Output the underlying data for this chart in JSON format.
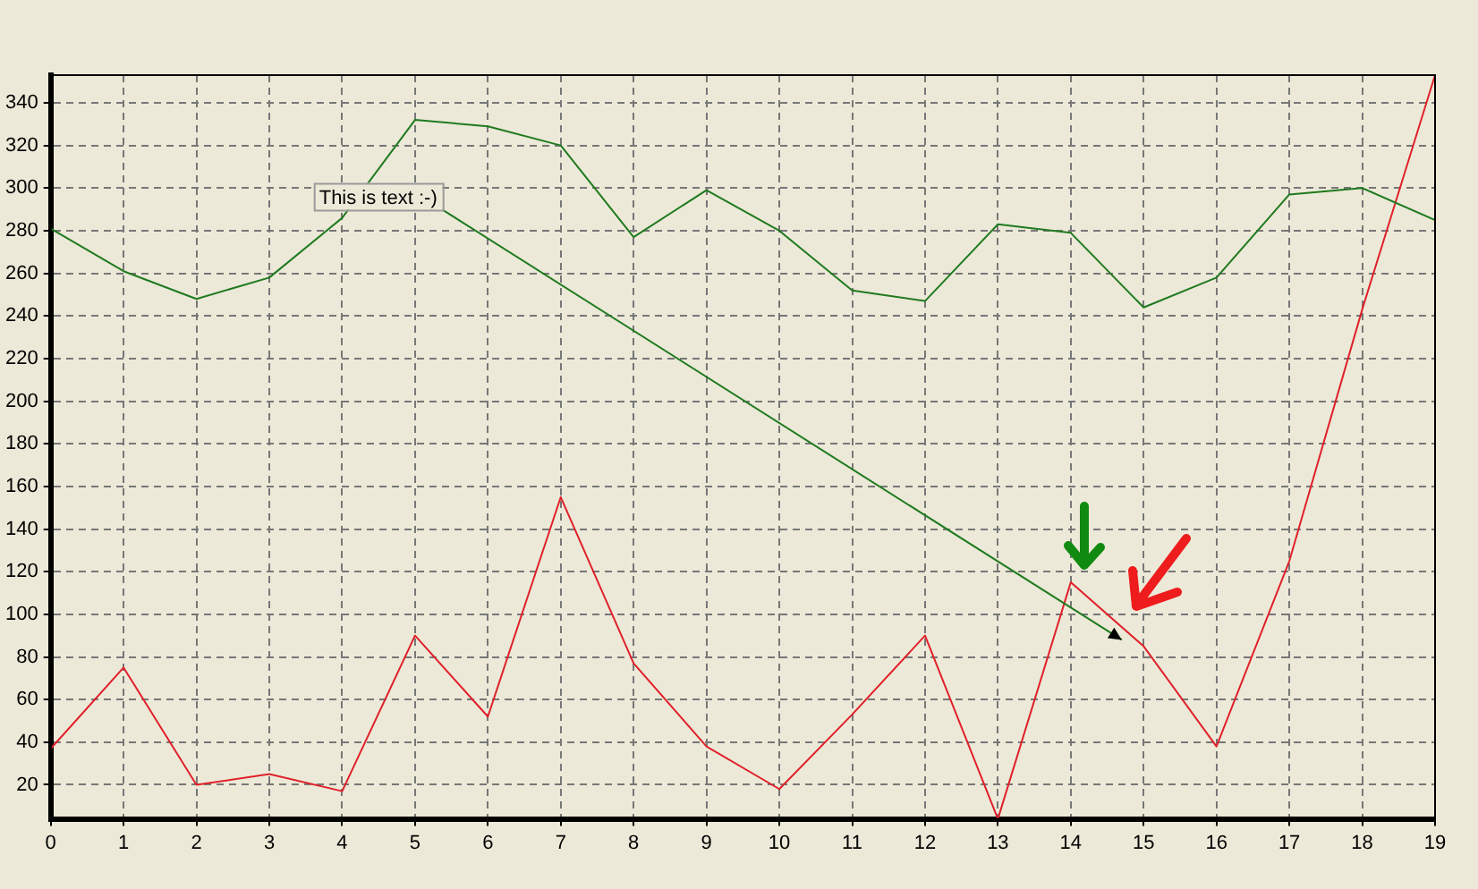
{
  "chart_data": {
    "type": "line",
    "x": [
      0,
      1,
      2,
      3,
      4,
      5,
      6,
      7,
      8,
      9,
      10,
      11,
      12,
      13,
      14,
      15,
      16,
      17,
      18,
      19
    ],
    "series": [
      {
        "color": "#1f7a1f",
        "values": [
          281,
          261,
          248,
          258,
          286,
          332,
          329,
          320,
          277,
          299,
          280,
          252,
          247,
          283,
          279,
          244,
          258,
          297,
          300,
          285
        ]
      },
      {
        "color": "#e0202a",
        "values": [
          37,
          75,
          20,
          25,
          17,
          90,
          52,
          155,
          77,
          38,
          18,
          53,
          90,
          4,
          115,
          85,
          38,
          125,
          243,
          353
        ]
      }
    ],
    "xlim": [
      0,
      19
    ],
    "xticks": [
      0,
      1,
      2,
      3,
      4,
      5,
      6,
      7,
      8,
      9,
      10,
      11,
      12,
      13,
      14,
      15,
      16,
      17,
      18,
      19
    ],
    "ylim": [
      4,
      353
    ],
    "yticks": [
      20,
      40,
      60,
      80,
      100,
      120,
      140,
      160,
      180,
      200,
      220,
      240,
      260,
      280,
      300,
      320,
      340
    ],
    "grid": true,
    "legend": false,
    "marker": "none",
    "line_style": "solid",
    "annotations": [
      {
        "text": "This is text :-)",
        "x": 14.7,
        "y": 88
      }
    ]
  }
}
